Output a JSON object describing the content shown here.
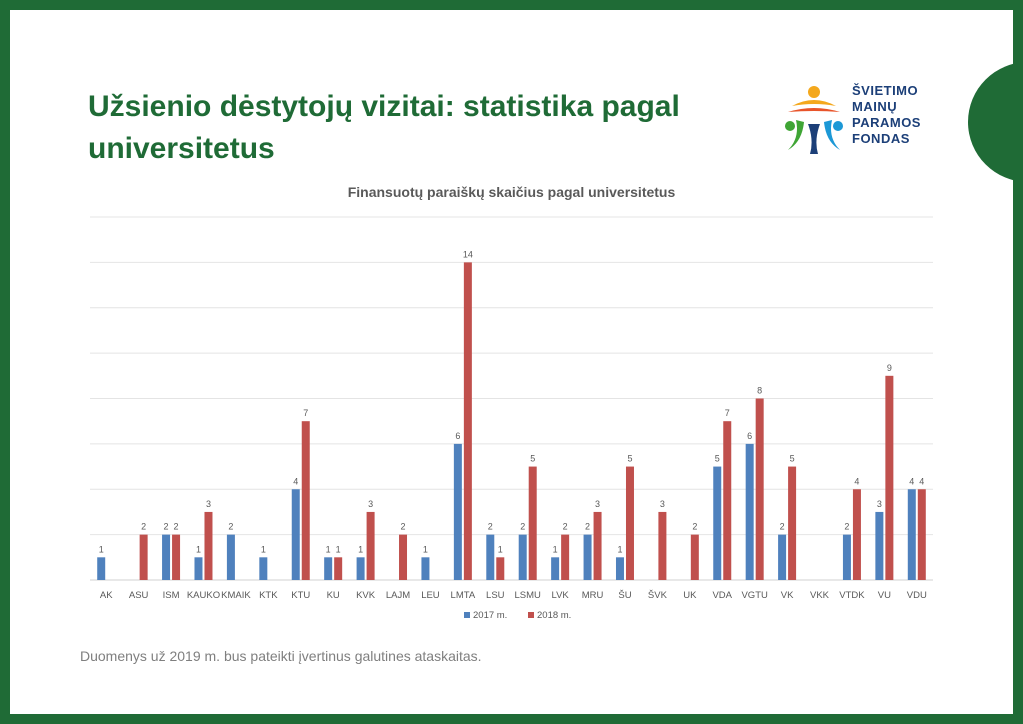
{
  "slide": {
    "title": "Užsienio dėstytojų vizitai: statistika pagal universitetus",
    "footnote": "Duomenys už 2019 m. bus pateikti įvertinus galutines ataskaitas.",
    "logo": {
      "lines": [
        "ŠVIETIMO",
        "MAINŲ",
        "PARAMOS",
        "FONDAS"
      ]
    }
  },
  "colors": {
    "frame": "#1f6b36",
    "series_2017": "#4f81bd",
    "series_2018": "#c0504d",
    "text": "#595959"
  },
  "chart_data": {
    "type": "bar",
    "title": "Finansuotų paraiškų skaičius pagal universitetus",
    "categories": [
      "AK",
      "ASU",
      "ISM",
      "KAUKO",
      "KMAIK",
      "KTK",
      "KTU",
      "KU",
      "KVK",
      "LAJM",
      "LEU",
      "LMTA",
      "LSU",
      "LSMU",
      "LVK",
      "MRU",
      "ŠU",
      "ŠVK",
      "UK",
      "VDA",
      "VGTU",
      "VK",
      "VKK",
      "VTDK",
      "VU",
      "VDU"
    ],
    "series": [
      {
        "name": "2017 m.",
        "values": [
          1,
          null,
          2,
          1,
          2,
          1,
          4,
          1,
          1,
          null,
          1,
          6,
          2,
          2,
          1,
          2,
          1,
          null,
          null,
          5,
          6,
          2,
          null,
          2,
          3,
          4
        ]
      },
      {
        "name": "2018 m.",
        "values": [
          null,
          2,
          2,
          3,
          null,
          null,
          7,
          1,
          3,
          2,
          null,
          14,
          1,
          5,
          2,
          3,
          5,
          3,
          2,
          7,
          8,
          5,
          null,
          4,
          9,
          4
        ]
      }
    ],
    "ylim": [
      0,
      16
    ],
    "grid": true,
    "legend": "bottom-center"
  }
}
